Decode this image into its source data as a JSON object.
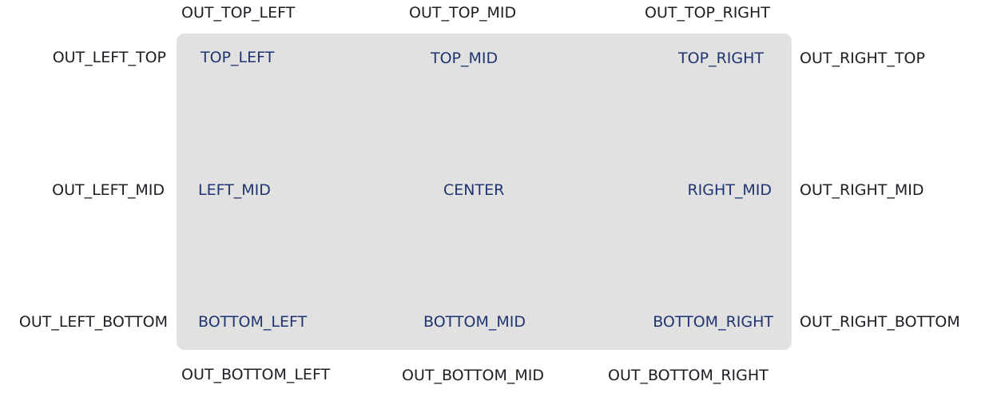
{
  "colors": {
    "panel_background": "#e1e1e1",
    "inside_text": "#1f3471",
    "outside_text": "#1d1d24",
    "page_background": "#ffffff"
  },
  "outside_labels": {
    "top_left": "OUT_TOP_LEFT",
    "top_mid": "OUT_TOP_MID",
    "top_right": "OUT_TOP_RIGHT",
    "left_top": "OUT_LEFT_TOP",
    "left_mid": "OUT_LEFT_MID",
    "left_bottom": "OUT_LEFT_BOTTOM",
    "right_top": "OUT_RIGHT_TOP",
    "right_mid": "OUT_RIGHT_MID",
    "right_bottom": "OUT_RIGHT_BOTTOM",
    "bottom_left": "OUT_BOTTOM_LEFT",
    "bottom_mid": "OUT_BOTTOM_MID",
    "bottom_right": "OUT_BOTTOM_RIGHT"
  },
  "inside_labels": {
    "top_left": "TOP_LEFT",
    "top_mid": "TOP_MID",
    "top_right": "TOP_RIGHT",
    "left_mid": "LEFT_MID",
    "center": "CENTER",
    "right_mid": "RIGHT_MID",
    "bottom_left": "BOTTOM_LEFT",
    "bottom_mid": "BOTTOM_MID",
    "bottom_right": "BOTTOM_RIGHT"
  }
}
